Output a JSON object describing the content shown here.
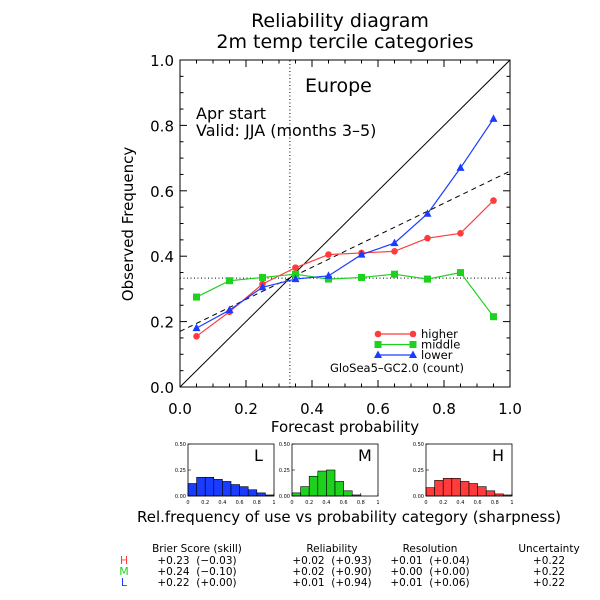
{
  "title_line1": "Reliability diagram",
  "title_line2": "2m temp tercile categories",
  "region": "Europe",
  "start_label": "Apr start",
  "valid_label": "Valid: JJA (months 3–5)",
  "model_label": "GloSea5–GC2.0 (count)",
  "sharpness_caption": "Rel.frequency of use vs probability category (sharpness)",
  "colors": {
    "higher": "#ff3b3b",
    "middle": "#1ed11e",
    "lower": "#1a3cff"
  },
  "chart_data": {
    "type": "line",
    "xlabel": "Forecast probability",
    "ylabel": "Observed Frequency",
    "xlim": [
      0,
      1
    ],
    "ylim": [
      0,
      1
    ],
    "xticks": [
      "0.0",
      "0.2",
      "0.4",
      "0.6",
      "0.8",
      "1.0"
    ],
    "yticks": [
      "0.0",
      "0.2",
      "0.4",
      "0.6",
      "0.8",
      "1.0"
    ],
    "x": [
      0.05,
      0.15,
      0.25,
      0.35,
      0.45,
      0.55,
      0.65,
      0.75,
      0.85,
      0.95
    ],
    "series": [
      {
        "name": "higher",
        "color": "#ff3b3b",
        "marker": "circle",
        "values": [
          0.155,
          0.23,
          0.315,
          0.365,
          0.405,
          0.41,
          0.415,
          0.455,
          0.47,
          0.57
        ]
      },
      {
        "name": "middle",
        "color": "#1ed11e",
        "marker": "square",
        "values": [
          0.275,
          0.325,
          0.335,
          0.345,
          0.33,
          0.335,
          0.345,
          0.33,
          0.35,
          0.215
        ]
      },
      {
        "name": "lower",
        "color": "#1a3cff",
        "marker": "triangle",
        "values": [
          0.18,
          0.235,
          0.305,
          0.33,
          0.34,
          0.405,
          0.44,
          0.53,
          0.67,
          0.82
        ]
      }
    ],
    "climatology": 0.333,
    "fit_line": {
      "x": [
        0,
        1
      ],
      "y": [
        0.17,
        0.66
      ]
    },
    "perfect_line": true
  },
  "sharpness_charts": [
    {
      "label": "L",
      "color": "#1a3cff",
      "values": [
        0.12,
        0.18,
        0.18,
        0.16,
        0.14,
        0.11,
        0.09,
        0.06,
        0.03,
        0.01
      ]
    },
    {
      "label": "M",
      "color": "#1ed11e",
      "values": [
        0.03,
        0.09,
        0.19,
        0.24,
        0.25,
        0.14,
        0.05,
        0.01,
        0.0,
        0.0
      ]
    },
    {
      "label": "H",
      "color": "#ff3b3b",
      "values": [
        0.08,
        0.15,
        0.17,
        0.17,
        0.14,
        0.12,
        0.09,
        0.05,
        0.02,
        0.01
      ]
    }
  ],
  "sharpness_yticks": [
    "0.50",
    "0.25",
    "0.00"
  ],
  "sharpness_xticks": [
    "0",
    "0.2",
    "0.4",
    "0.6",
    "0.8",
    "1"
  ],
  "sharpness_ylim": [
    0,
    0.5
  ],
  "scores": {
    "headers": [
      "Brier Score (skill)",
      "Reliability",
      "Resolution",
      "Uncertainty"
    ],
    "rows": [
      {
        "label": "H",
        "color": "#ff3b3b",
        "values": [
          "+0.23  (−0.03)",
          "+0.02  (+0.93)",
          "+0.01  (+0.04)",
          "+0.22"
        ]
      },
      {
        "label": "M",
        "color": "#1ed11e",
        "values": [
          "+0.24  (−0.10)",
          "+0.02  (+0.90)",
          "+0.00  (+0.00)",
          "+0.22"
        ]
      },
      {
        "label": "L",
        "color": "#1a3cff",
        "values": [
          "+0.22  (+0.00)",
          "+0.01  (+0.94)",
          "+0.01  (+0.06)",
          "+0.22"
        ]
      }
    ]
  }
}
